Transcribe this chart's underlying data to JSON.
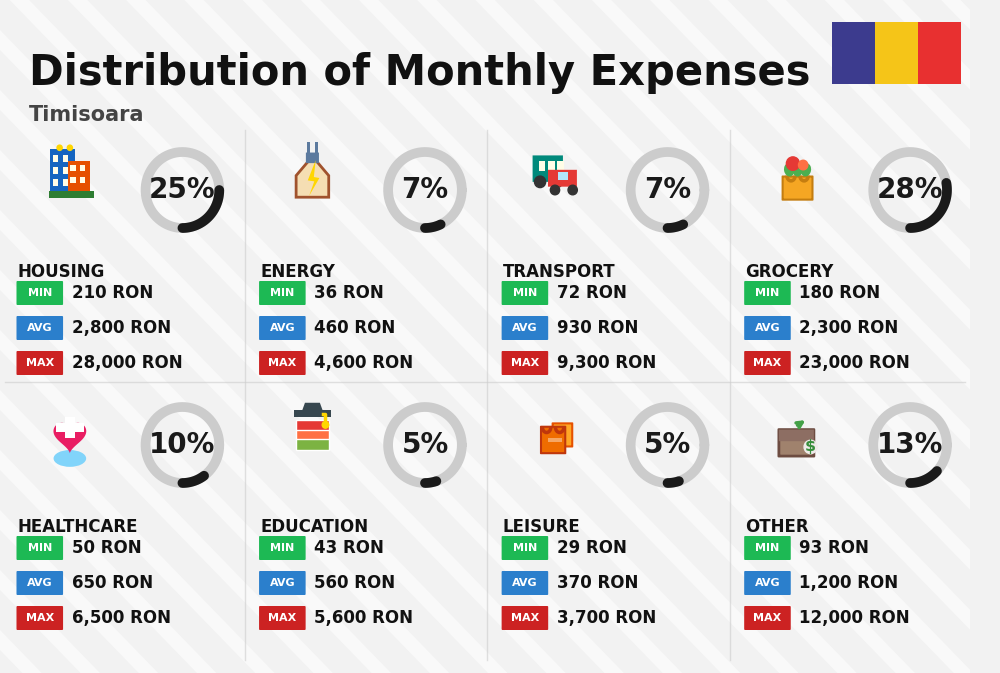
{
  "title": "Distribution of Monthly Expenses",
  "subtitle": "Timisoara",
  "bg_color": "#f2f2f2",
  "categories": [
    {
      "name": "HOUSING",
      "percent": 25,
      "min": "210 RON",
      "avg": "2,800 RON",
      "max": "28,000 RON",
      "row": 0,
      "col": 0
    },
    {
      "name": "ENERGY",
      "percent": 7,
      "min": "36 RON",
      "avg": "460 RON",
      "max": "4,600 RON",
      "row": 0,
      "col": 1
    },
    {
      "name": "TRANSPORT",
      "percent": 7,
      "min": "72 RON",
      "avg": "930 RON",
      "max": "9,300 RON",
      "row": 0,
      "col": 2
    },
    {
      "name": "GROCERY",
      "percent": 28,
      "min": "180 RON",
      "avg": "2,300 RON",
      "max": "23,000 RON",
      "row": 0,
      "col": 3
    },
    {
      "name": "HEALTHCARE",
      "percent": 10,
      "min": "50 RON",
      "avg": "650 RON",
      "max": "6,500 RON",
      "row": 1,
      "col": 0
    },
    {
      "name": "EDUCATION",
      "percent": 5,
      "min": "43 RON",
      "avg": "560 RON",
      "max": "5,600 RON",
      "row": 1,
      "col": 1
    },
    {
      "name": "LEISURE",
      "percent": 5,
      "min": "29 RON",
      "avg": "370 RON",
      "max": "3,700 RON",
      "row": 1,
      "col": 2
    },
    {
      "name": "OTHER",
      "percent": 13,
      "min": "93 RON",
      "avg": "1,200 RON",
      "max": "12,000 RON",
      "row": 1,
      "col": 3
    }
  ],
  "min_color": "#1db954",
  "avg_color": "#2b7fcc",
  "max_color": "#cc2222",
  "label_color": "#ffffff",
  "arc_color_filled": "#1a1a1a",
  "arc_color_empty": "#cccccc",
  "flag_colors": [
    "#3c3b8e",
    "#f5c518",
    "#e83030"
  ],
  "title_fontsize": 30,
  "subtitle_fontsize": 15,
  "category_fontsize": 12,
  "value_fontsize": 12,
  "percent_fontsize": 20,
  "stripe_color": "#ffffff",
  "stripe_alpha": 0.55
}
